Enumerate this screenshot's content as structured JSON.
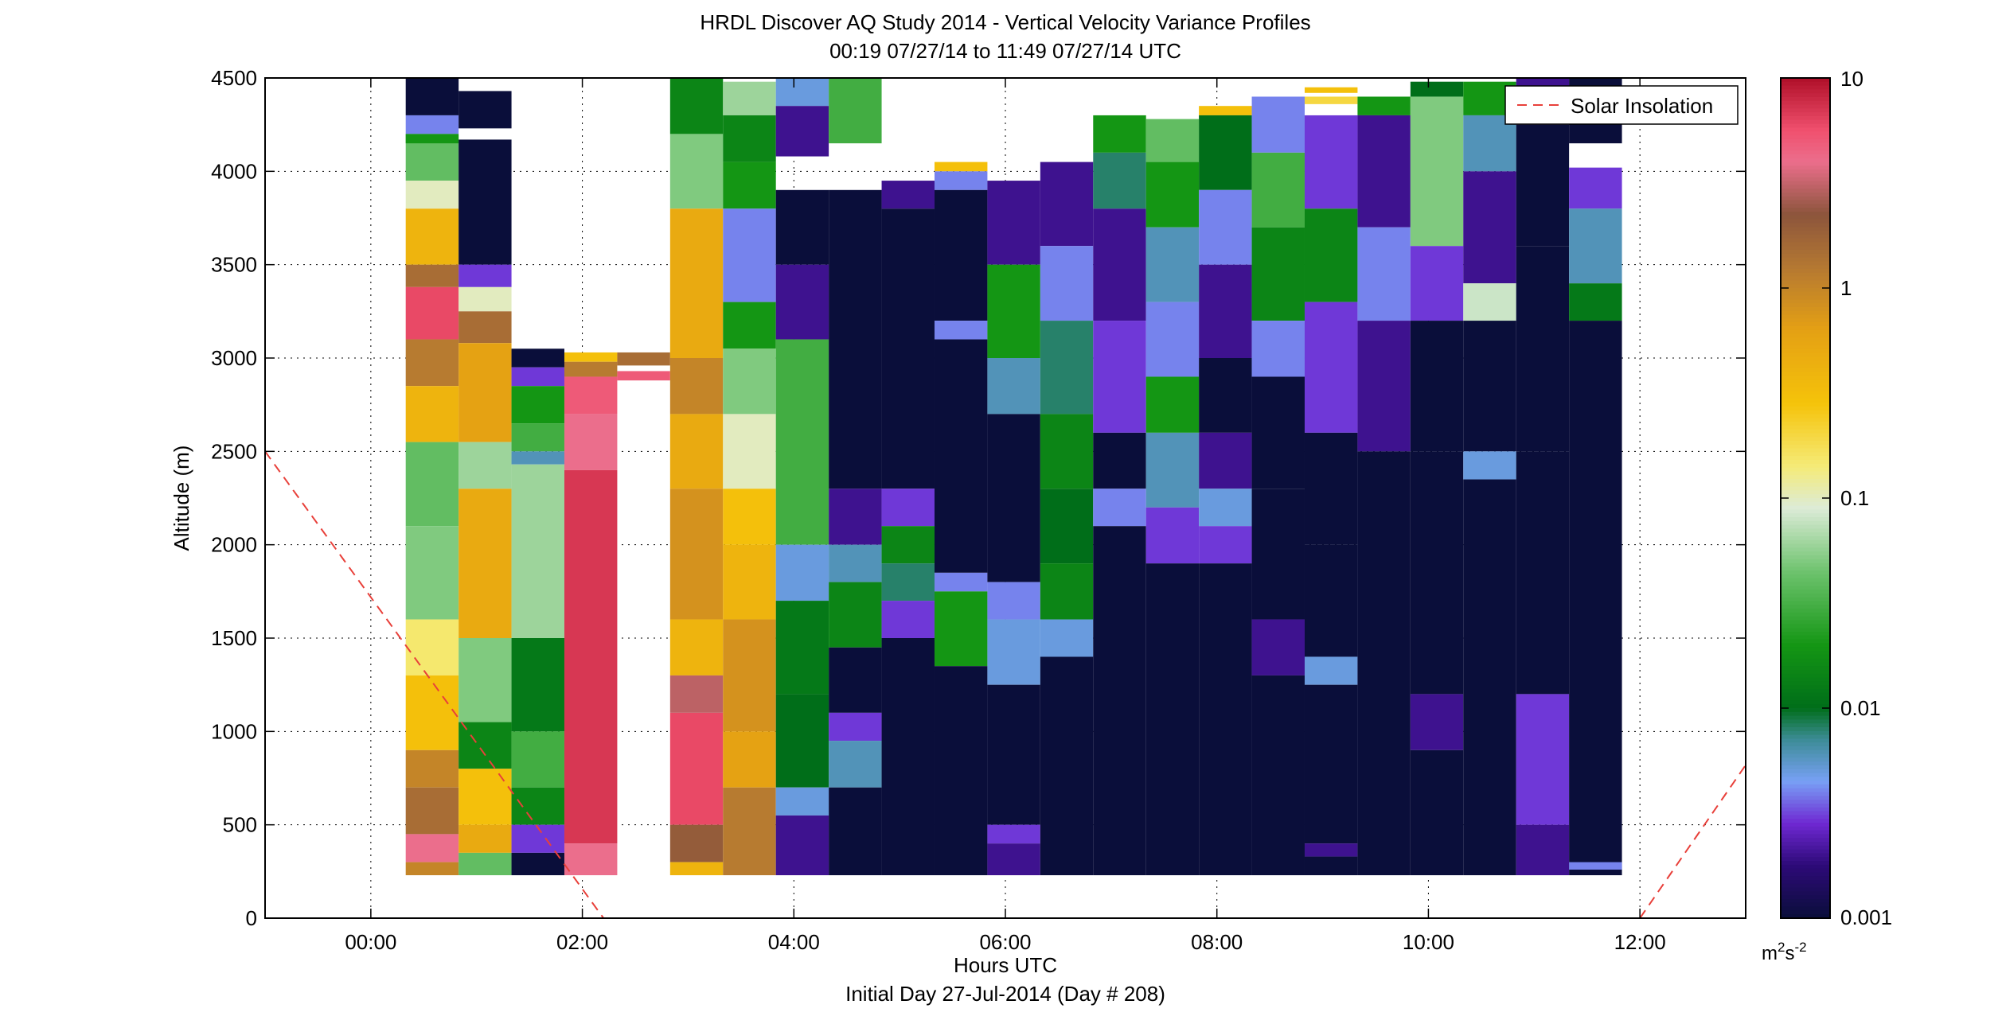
{
  "chart_data": {
    "type": "heatmap",
    "title": "HRDL Discover AQ Study 2014 - Vertical Velocity Variance Profiles",
    "subtitle": "00:19 07/27/14 to 11:49 07/27/14  UTC",
    "xlabel": "Hours UTC",
    "xlabel2": "Initial Day 27-Jul-2014 (Day # 208)",
    "ylabel": "Altitude (m)",
    "xlim": [
      -1.0,
      13.0
    ],
    "ylim": [
      0,
      4500
    ],
    "xticks": [
      0,
      2,
      4,
      6,
      8,
      10,
      12
    ],
    "xtick_labels": [
      "00:00",
      "02:00",
      "04:00",
      "06:00",
      "08:00",
      "10:00",
      "12:00"
    ],
    "yticks": [
      0,
      500,
      1000,
      1500,
      2000,
      2500,
      3000,
      3500,
      4000,
      4500
    ],
    "ytick_labels": [
      "0",
      "500",
      "1000",
      "1500",
      "2000",
      "2500",
      "3000",
      "3500",
      "4000",
      "4500"
    ],
    "grid": true,
    "colorbar": {
      "scale": "log",
      "range": [
        0.001,
        10
      ],
      "tick_labels": [
        "10",
        "1",
        "0.1",
        "0.01",
        "0.001"
      ],
      "tick_values": [
        10,
        1,
        0.1,
        0.01,
        0.001
      ],
      "unit_base": "m",
      "unit_sup1": "2",
      "unit_mid": "s",
      "unit_sup2": "-2"
    },
    "legend": {
      "position": "top-right",
      "label": "Solar Insolation",
      "color": "#e8403a",
      "style": "dashed"
    },
    "solar_insolation": [
      {
        "x": -1.0,
        "y": 2500
      },
      {
        "x": 2.2,
        "y": 0
      },
      {
        "x": 12.0,
        "y": 0
      },
      {
        "x": 13.0,
        "y": 820
      }
    ],
    "profile_width_hours": 0.5,
    "profiles": [
      {
        "t": 0.58,
        "top": 4500,
        "bottom": 230,
        "segs": [
          [
            4500,
            4300,
            0.001
          ],
          [
            4300,
            4200,
            0.004
          ],
          [
            4200,
            3950,
            0.04
          ],
          [
            4200,
            4150,
            0.02
          ],
          [
            3950,
            3800,
            0.1
          ],
          [
            3800,
            3500,
            0.4
          ],
          [
            3500,
            3380,
            1.5
          ],
          [
            3380,
            3100,
            6
          ],
          [
            3100,
            2850,
            1.2
          ],
          [
            2850,
            2550,
            0.4
          ],
          [
            2550,
            2100,
            0.04
          ],
          [
            2100,
            1600,
            0.05
          ],
          [
            1600,
            1300,
            0.15
          ],
          [
            1300,
            900,
            0.3
          ],
          [
            900,
            700,
            1
          ],
          [
            700,
            450,
            1.5
          ],
          [
            450,
            300,
            4
          ],
          [
            300,
            230,
            1
          ]
        ]
      },
      {
        "t": 1.08,
        "top": 4430,
        "bottom": 230,
        "segs": [
          [
            4430,
            4230,
            0.001
          ],
          [
            4170,
            3500,
            0.001
          ],
          [
            3500,
            3380,
            0.003
          ],
          [
            3380,
            3250,
            0.1
          ],
          [
            3250,
            3080,
            1.5
          ],
          [
            3080,
            2550,
            0.6
          ],
          [
            2550,
            2300,
            0.06
          ],
          [
            2300,
            1500,
            0.5
          ],
          [
            1500,
            1050,
            0.05
          ],
          [
            1050,
            800,
            0.015
          ],
          [
            800,
            500,
            0.3
          ],
          [
            500,
            350,
            0.5
          ],
          [
            350,
            230,
            0.04
          ]
        ]
      },
      {
        "t": 1.58,
        "top": 3050,
        "bottom": 230,
        "segs": [
          [
            3050,
            2950,
            0.001
          ],
          [
            2950,
            2850,
            0.003
          ],
          [
            2850,
            2650,
            0.02
          ],
          [
            2650,
            2500,
            0.03
          ],
          [
            2500,
            2430,
            0.006
          ],
          [
            2430,
            1500,
            0.06
          ],
          [
            1500,
            1000,
            0.012
          ],
          [
            1000,
            700,
            0.03
          ],
          [
            700,
            500,
            0.015
          ],
          [
            500,
            350,
            0.003
          ],
          [
            350,
            230,
            0.001
          ]
        ]
      },
      {
        "t": 2.08,
        "top": 3030,
        "bottom": 230,
        "segs": [
          [
            3030,
            2980,
            0.3
          ],
          [
            2980,
            2900,
            1.2
          ],
          [
            2900,
            2700,
            5
          ],
          [
            2700,
            2400,
            4
          ],
          [
            2400,
            400,
            7
          ],
          [
            400,
            230,
            4
          ]
        ]
      },
      {
        "t": 2.58,
        "top": 3030,
        "bottom": 2880,
        "segs": [
          [
            3030,
            2960,
            1.5
          ],
          [
            2930,
            2880,
            5
          ]
        ]
      },
      {
        "t": 3.08,
        "top": 4500,
        "bottom": 230,
        "segs": [
          [
            4500,
            4200,
            0.015
          ],
          [
            4200,
            3800,
            0.05
          ],
          [
            3800,
            3000,
            0.5
          ],
          [
            3000,
            2700,
            1
          ],
          [
            2700,
            2300,
            0.5
          ],
          [
            2300,
            1600,
            0.8
          ],
          [
            1600,
            1300,
            0.4
          ],
          [
            1300,
            1100,
            3
          ],
          [
            1100,
            500,
            6
          ],
          [
            500,
            300,
            2
          ],
          [
            300,
            230,
            0.4
          ]
        ]
      },
      {
        "t": 3.58,
        "top": 4480,
        "bottom": 230,
        "segs": [
          [
            4480,
            4300,
            0.06
          ],
          [
            4300,
            4050,
            0.015
          ],
          [
            4050,
            3800,
            0.02
          ],
          [
            3800,
            3300,
            0.004
          ],
          [
            3300,
            3050,
            0.02
          ],
          [
            3050,
            2700,
            0.05
          ],
          [
            2700,
            2300,
            0.1
          ],
          [
            2300,
            2000,
            0.3
          ],
          [
            2000,
            1600,
            0.4
          ],
          [
            1600,
            1000,
            0.8
          ],
          [
            1000,
            700,
            0.6
          ],
          [
            700,
            230,
            1.2
          ]
        ]
      },
      {
        "t": 4.08,
        "top": 4500,
        "bottom": 230,
        "segs": [
          [
            4500,
            4350,
            0.005
          ],
          [
            4350,
            4080,
            0.002
          ],
          [
            3900,
            3500,
            0.001
          ],
          [
            3500,
            3100,
            0.002
          ],
          [
            3100,
            2000,
            0.03
          ],
          [
            2000,
            1700,
            0.005
          ],
          [
            1700,
            1200,
            0.012
          ],
          [
            1200,
            700,
            0.01
          ],
          [
            700,
            550,
            0.005
          ],
          [
            550,
            230,
            0.002
          ]
        ]
      },
      {
        "t": 4.58,
        "top": 4500,
        "bottom": 230,
        "segs": [
          [
            4500,
            4150,
            0.03
          ],
          [
            3900,
            2300,
            0.001
          ],
          [
            2300,
            2000,
            0.002
          ],
          [
            2000,
            1800,
            0.006
          ],
          [
            1800,
            1450,
            0.015
          ],
          [
            1450,
            1100,
            0.001
          ],
          [
            1100,
            950,
            0.003
          ],
          [
            950,
            700,
            0.006
          ],
          [
            700,
            230,
            0.001
          ]
        ]
      },
      {
        "t": 5.08,
        "top": 3950,
        "bottom": 230,
        "segs": [
          [
            3950,
            3800,
            0.002
          ],
          [
            3800,
            2300,
            0.001
          ],
          [
            2300,
            2100,
            0.003
          ],
          [
            2100,
            1900,
            0.015
          ],
          [
            1900,
            1700,
            0.008
          ],
          [
            1700,
            1500,
            0.003
          ],
          [
            1500,
            230,
            0.001
          ]
        ]
      },
      {
        "t": 5.58,
        "top": 4050,
        "bottom": 230,
        "segs": [
          [
            4050,
            4000,
            0.3
          ],
          [
            4000,
            3900,
            0.004
          ],
          [
            3900,
            3200,
            0.001
          ],
          [
            3200,
            3100,
            0.004
          ],
          [
            3100,
            1850,
            0.001
          ],
          [
            1850,
            1750,
            0.004
          ],
          [
            1750,
            1350,
            0.02
          ],
          [
            1350,
            230,
            0.001
          ]
        ]
      },
      {
        "t": 6.08,
        "top": 3950,
        "bottom": 230,
        "segs": [
          [
            3950,
            3500,
            0.002
          ],
          [
            3500,
            3000,
            0.02
          ],
          [
            3000,
            2700,
            0.006
          ],
          [
            2700,
            1800,
            0.001
          ],
          [
            1800,
            1600,
            0.004
          ],
          [
            1600,
            1250,
            0.005
          ],
          [
            1250,
            500,
            0.001
          ],
          [
            500,
            400,
            0.003
          ],
          [
            400,
            230,
            0.002
          ]
        ]
      },
      {
        "t": 6.58,
        "top": 4050,
        "bottom": 230,
        "segs": [
          [
            4050,
            3600,
            0.002
          ],
          [
            3600,
            3200,
            0.004
          ],
          [
            3200,
            2700,
            0.008
          ],
          [
            2700,
            2300,
            0.015
          ],
          [
            2300,
            1900,
            0.01
          ],
          [
            1900,
            1600,
            0.015
          ],
          [
            1600,
            1400,
            0.005
          ],
          [
            1400,
            230,
            0.001
          ]
        ]
      },
      {
        "t": 7.08,
        "top": 4300,
        "bottom": 230,
        "segs": [
          [
            4300,
            4100,
            0.02
          ],
          [
            4100,
            3800,
            0.008
          ],
          [
            3800,
            3200,
            0.002
          ],
          [
            3200,
            2600,
            0.003
          ],
          [
            2600,
            2300,
            0.001
          ],
          [
            2300,
            2100,
            0.004
          ],
          [
            2100,
            230,
            0.001
          ]
        ]
      },
      {
        "t": 7.58,
        "top": 4280,
        "bottom": 230,
        "segs": [
          [
            4280,
            4050,
            0.04
          ],
          [
            4050,
            3700,
            0.02
          ],
          [
            3700,
            3300,
            0.006
          ],
          [
            3300,
            2900,
            0.004
          ],
          [
            2900,
            2600,
            0.02
          ],
          [
            2600,
            2200,
            0.006
          ],
          [
            2200,
            1900,
            0.003
          ],
          [
            1900,
            230,
            0.001
          ]
        ]
      },
      {
        "t": 8.08,
        "top": 4350,
        "bottom": 230,
        "segs": [
          [
            4350,
            4300,
            0.3
          ],
          [
            4300,
            3900,
            0.01
          ],
          [
            3900,
            3500,
            0.004
          ],
          [
            3500,
            3000,
            0.002
          ],
          [
            3000,
            2600,
            0.001
          ],
          [
            2600,
            2300,
            0.002
          ],
          [
            2300,
            2100,
            0.005
          ],
          [
            2100,
            1900,
            0.003
          ],
          [
            1900,
            230,
            0.001
          ]
        ]
      },
      {
        "t": 8.58,
        "top": 4400,
        "bottom": 230,
        "segs": [
          [
            4400,
            4100,
            0.004
          ],
          [
            4100,
            3700,
            0.03
          ],
          [
            3700,
            3200,
            0.015
          ],
          [
            3200,
            2900,
            0.004
          ],
          [
            2900,
            2300,
            0.001
          ],
          [
            2300,
            1600,
            0.001
          ],
          [
            1600,
            1300,
            0.002
          ],
          [
            1300,
            230,
            0.001
          ]
        ]
      },
      {
        "t": 9.08,
        "top": 4450,
        "bottom": 230,
        "segs": [
          [
            4450,
            4420,
            0.3
          ],
          [
            4400,
            4360,
            0.2
          ],
          [
            4300,
            3800,
            0.003
          ],
          [
            3800,
            3300,
            0.015
          ],
          [
            3300,
            2600,
            0.003
          ],
          [
            2600,
            2000,
            0.001
          ],
          [
            2000,
            1400,
            0.001
          ],
          [
            1400,
            1250,
            0.005
          ],
          [
            1250,
            400,
            0.001
          ],
          [
            400,
            330,
            0.002
          ],
          [
            330,
            230,
            0.001
          ]
        ]
      },
      {
        "t": 9.58,
        "top": 4400,
        "bottom": 230,
        "segs": [
          [
            4400,
            4300,
            0.02
          ],
          [
            4300,
            3700,
            0.002
          ],
          [
            3700,
            3200,
            0.004
          ],
          [
            3200,
            2500,
            0.002
          ],
          [
            2500,
            230,
            0.001
          ]
        ]
      },
      {
        "t": 10.08,
        "top": 4480,
        "bottom": 230,
        "segs": [
          [
            4480,
            4400,
            0.01
          ],
          [
            4400,
            3600,
            0.05
          ],
          [
            3600,
            3200,
            0.003
          ],
          [
            3200,
            2500,
            0.001
          ],
          [
            2500,
            1200,
            0.001
          ],
          [
            1200,
            900,
            0.002
          ],
          [
            900,
            230,
            0.001
          ]
        ]
      },
      {
        "t": 10.58,
        "top": 4480,
        "bottom": 230,
        "segs": [
          [
            4480,
            4300,
            0.02
          ],
          [
            4300,
            4000,
            0.006
          ],
          [
            4000,
            3400,
            0.002
          ],
          [
            3400,
            3200,
            0.08
          ],
          [
            3200,
            2500,
            0.001
          ],
          [
            2500,
            2350,
            0.005
          ],
          [
            2350,
            230,
            0.001
          ]
        ]
      },
      {
        "t": 11.08,
        "top": 4500,
        "bottom": 230,
        "segs": [
          [
            4500,
            4250,
            0.002
          ],
          [
            4250,
            3600,
            0.001
          ],
          [
            3600,
            2500,
            0.001
          ],
          [
            2500,
            1200,
            0.001
          ],
          [
            1200,
            500,
            0.003
          ],
          [
            500,
            230,
            0.002
          ]
        ]
      },
      {
        "t": 11.58,
        "top": 4500,
        "bottom": 230,
        "segs": [
          [
            4500,
            4150,
            0.001
          ],
          [
            4020,
            3800,
            0.003
          ],
          [
            3800,
            3400,
            0.006
          ],
          [
            3400,
            3200,
            0.012
          ],
          [
            3200,
            230,
            0.001
          ],
          [
            300,
            260,
            0.004
          ]
        ]
      }
    ]
  }
}
